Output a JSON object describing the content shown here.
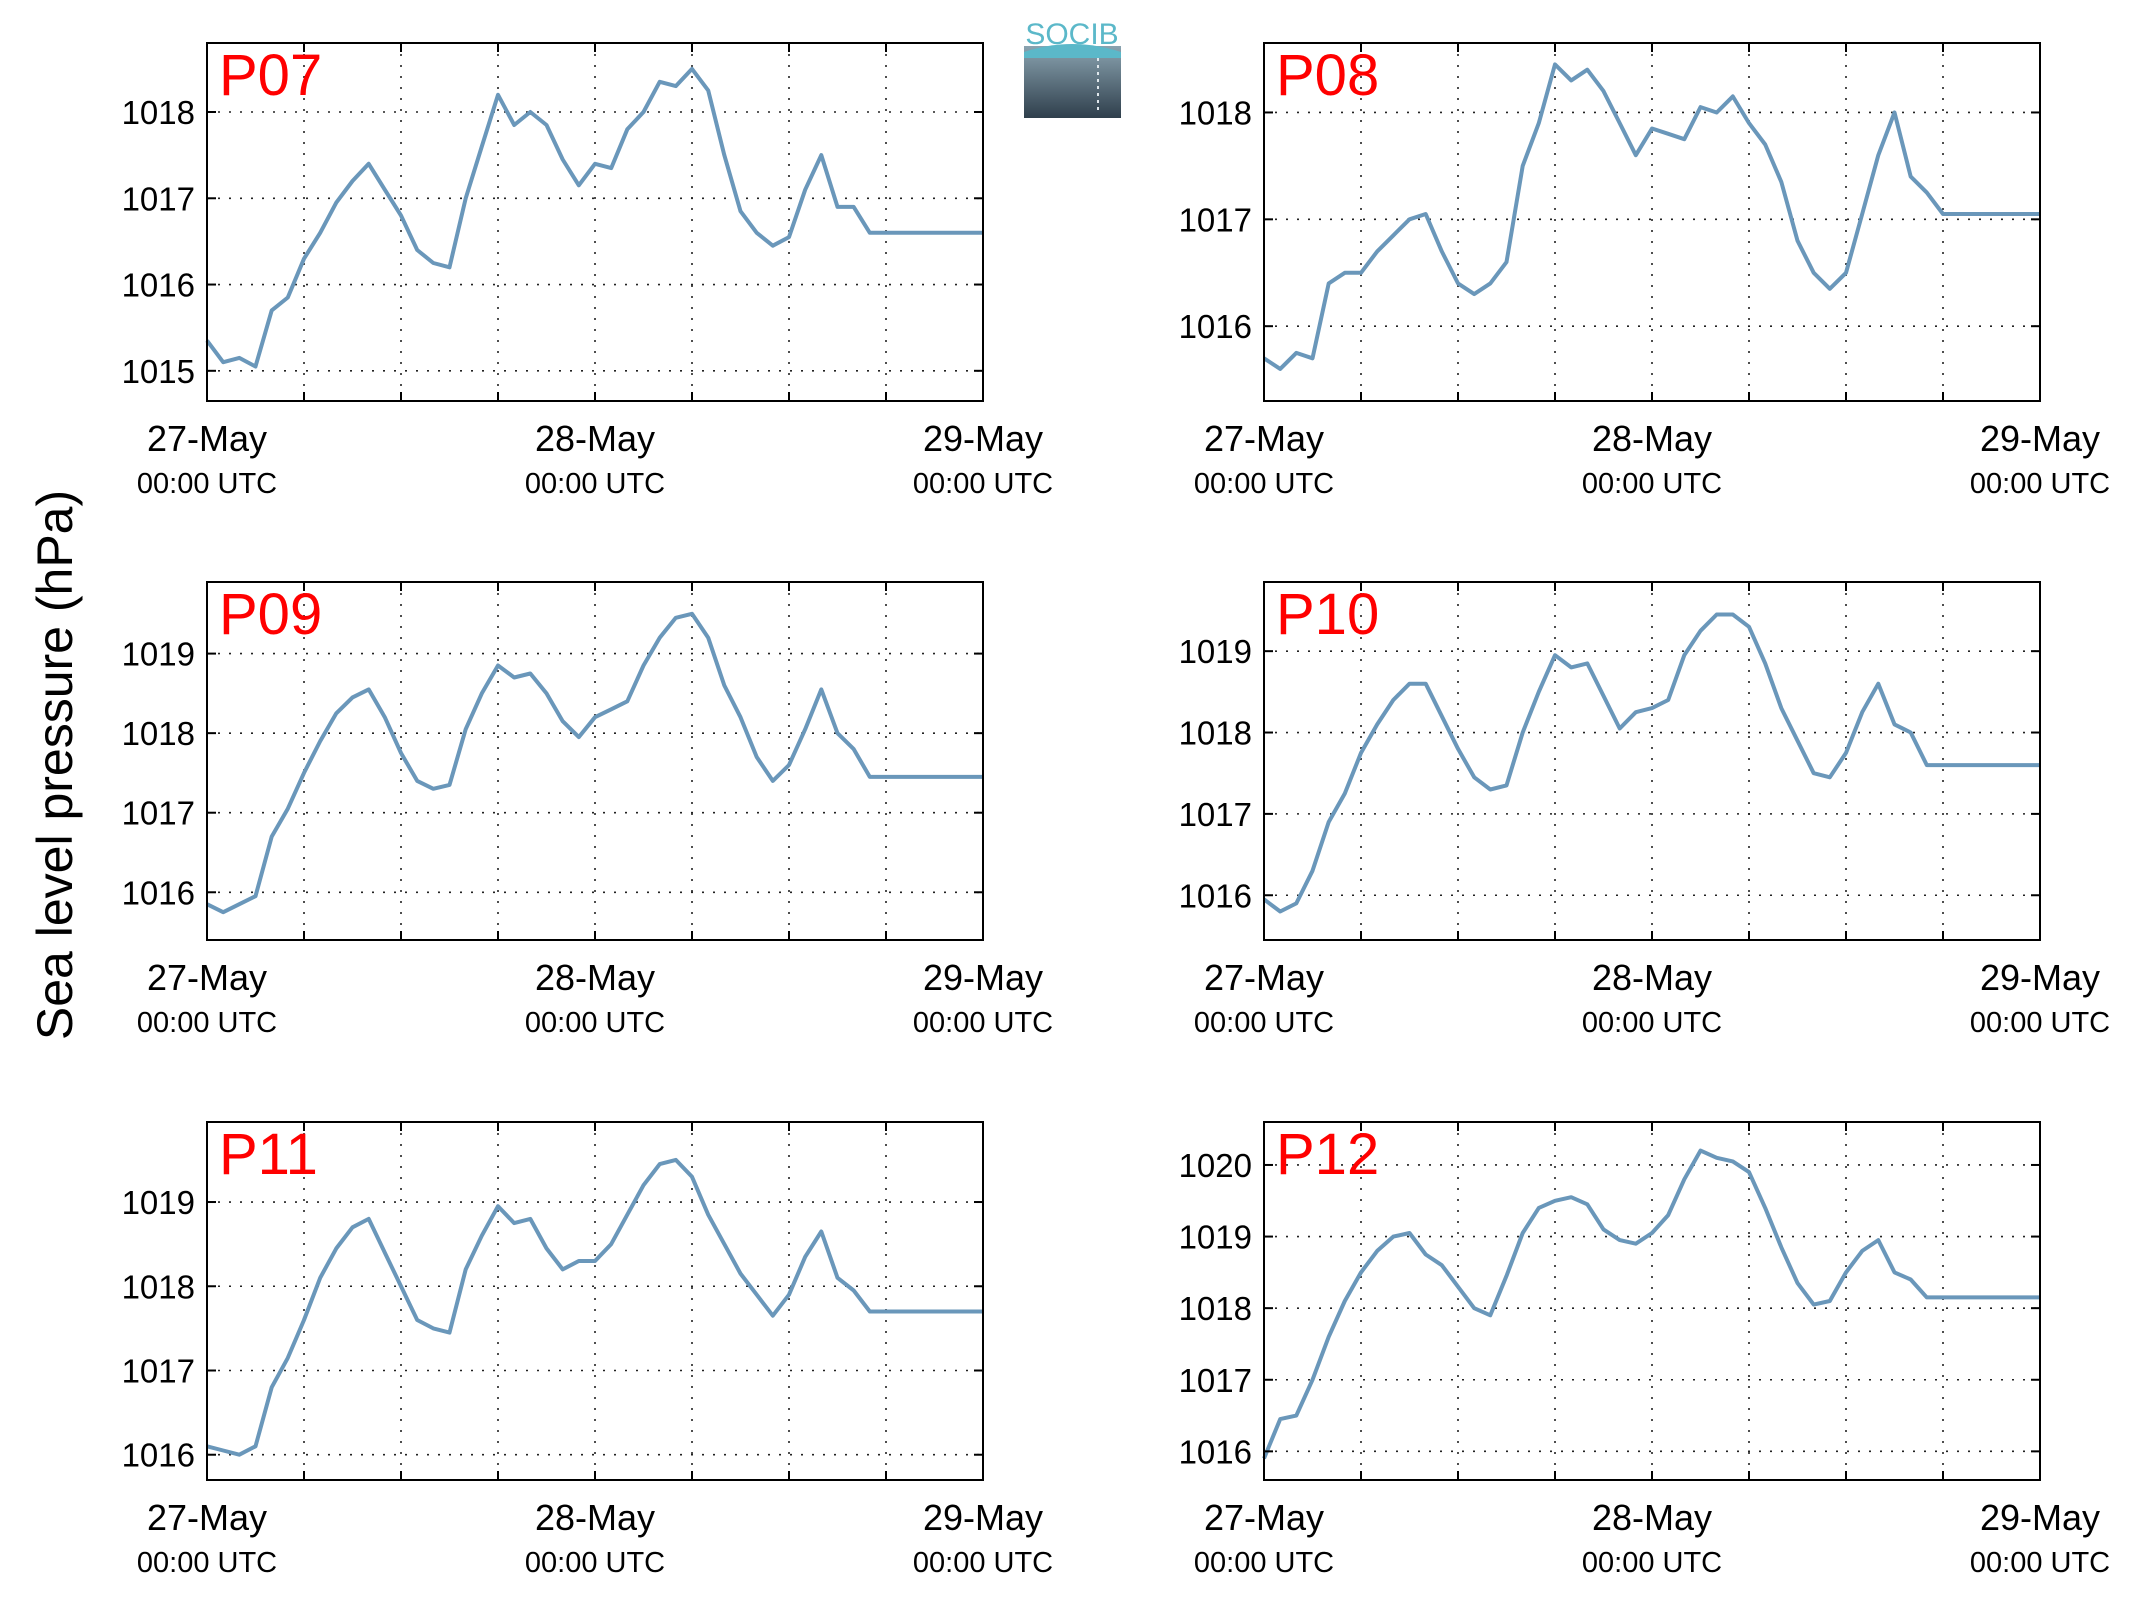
{
  "ylabel": "Sea level pressure (hPa)",
  "logo": {
    "text": "SOCIB",
    "colors": [
      "#5bb8c9",
      "#8aa3b0",
      "#2f3f4c"
    ]
  },
  "colors": {
    "line": "#6a97ba",
    "panel_label": "#ff0000",
    "axis": "#000000",
    "grid": "#222222"
  },
  "x_axis": {
    "ticks": [
      "27-May",
      "28-May",
      "29-May"
    ],
    "tick_sublabels": [
      "00:00 UTC",
      "00:00 UTC",
      "00:00 UTC"
    ],
    "tick_values_hours": [
      0,
      24,
      48
    ],
    "grid_hours": [
      6,
      12,
      18,
      24,
      30,
      36,
      42
    ],
    "range_hours": [
      0,
      48
    ]
  },
  "chart_data": [
    {
      "type": "line",
      "label": "P07",
      "ylim": [
        1014.65,
        1018.8
      ],
      "yticks": [
        1015,
        1016,
        1017,
        1018
      ],
      "x_hours": [
        0,
        1,
        2,
        3,
        4,
        5,
        6,
        7,
        8,
        9,
        10,
        11,
        12,
        13,
        14,
        15,
        16,
        17,
        18,
        19,
        20,
        21,
        22,
        23,
        24,
        25,
        26,
        27,
        28,
        29,
        30,
        31,
        32,
        33,
        34,
        35,
        36,
        37,
        38,
        39,
        40,
        41,
        42,
        43,
        44,
        45,
        46,
        47,
        48
      ],
      "values": [
        1015.35,
        1015.1,
        1015.15,
        1015.05,
        1015.7,
        1015.85,
        1016.3,
        1016.6,
        1016.95,
        1017.2,
        1017.4,
        1017.1,
        1016.8,
        1016.4,
        1016.25,
        1016.2,
        1017.0,
        1017.6,
        1018.2,
        1017.85,
        1018.0,
        1017.85,
        1017.45,
        1017.15,
        1017.4,
        1017.35,
        1017.8,
        1018.0,
        1018.35,
        1018.3,
        1018.5,
        1018.25,
        1017.5,
        1016.85,
        1016.6,
        1016.45,
        1016.55,
        1017.1,
        1017.5,
        1016.9,
        1016.9,
        1016.6,
        1016.6,
        1016.6,
        1016.6,
        1016.6,
        1016.6,
        1016.6,
        1016.6
      ]
    },
    {
      "type": "line",
      "label": "P08",
      "ylim": [
        1015.3,
        1018.65
      ],
      "yticks": [
        1016,
        1017,
        1018
      ],
      "x_hours": [
        0,
        1,
        2,
        3,
        4,
        5,
        6,
        7,
        8,
        9,
        10,
        11,
        12,
        13,
        14,
        15,
        16,
        17,
        18,
        19,
        20,
        21,
        22,
        23,
        24,
        25,
        26,
        27,
        28,
        29,
        30,
        31,
        32,
        33,
        34,
        35,
        36,
        37,
        38,
        39,
        40,
        41,
        42,
        43,
        44,
        45,
        46,
        47,
        48
      ],
      "values": [
        1015.7,
        1015.6,
        1015.75,
        1015.7,
        1016.4,
        1016.5,
        1016.5,
        1016.7,
        1016.85,
        1017.0,
        1017.05,
        1016.7,
        1016.4,
        1016.3,
        1016.4,
        1016.6,
        1017.5,
        1017.9,
        1018.45,
        1018.3,
        1018.4,
        1018.2,
        1017.9,
        1017.6,
        1017.85,
        1017.8,
        1017.75,
        1018.05,
        1018.0,
        1018.15,
        1017.9,
        1017.7,
        1017.35,
        1016.8,
        1016.5,
        1016.35,
        1016.5,
        1017.05,
        1017.6,
        1018.0,
        1017.4,
        1017.25,
        1017.05,
        1017.05,
        1017.05,
        1017.05,
        1017.05,
        1017.05,
        1017.05
      ]
    },
    {
      "type": "line",
      "label": "P09",
      "ylim": [
        1015.4,
        1019.9
      ],
      "yticks": [
        1016,
        1017,
        1018,
        1019
      ],
      "x_hours": [
        0,
        1,
        2,
        3,
        4,
        5,
        6,
        7,
        8,
        9,
        10,
        11,
        12,
        13,
        14,
        15,
        16,
        17,
        18,
        19,
        20,
        21,
        22,
        23,
        24,
        25,
        26,
        27,
        28,
        29,
        30,
        31,
        32,
        33,
        34,
        35,
        36,
        37,
        38,
        39,
        40,
        41,
        42,
        43,
        44,
        45,
        46,
        47,
        48
      ],
      "values": [
        1015.85,
        1015.75,
        1015.85,
        1015.95,
        1016.7,
        1017.05,
        1017.5,
        1017.9,
        1018.25,
        1018.45,
        1018.55,
        1018.2,
        1017.75,
        1017.4,
        1017.3,
        1017.35,
        1018.05,
        1018.5,
        1018.85,
        1018.7,
        1018.75,
        1018.5,
        1018.15,
        1017.95,
        1018.2,
        1018.3,
        1018.4,
        1018.85,
        1019.2,
        1019.45,
        1019.5,
        1019.2,
        1018.6,
        1018.2,
        1017.7,
        1017.4,
        1017.6,
        1018.05,
        1018.55,
        1018.0,
        1017.8,
        1017.45,
        1017.45,
        1017.45,
        1017.45,
        1017.45,
        1017.45,
        1017.45,
        1017.45
      ]
    },
    {
      "type": "line",
      "label": "P10",
      "ylim": [
        1015.45,
        1019.85
      ],
      "yticks": [
        1016,
        1017,
        1018,
        1019
      ],
      "x_hours": [
        0,
        1,
        2,
        3,
        4,
        5,
        6,
        7,
        8,
        9,
        10,
        11,
        12,
        13,
        14,
        15,
        16,
        17,
        18,
        19,
        20,
        21,
        22,
        23,
        24,
        25,
        26,
        27,
        28,
        29,
        30,
        31,
        32,
        33,
        34,
        35,
        36,
        37,
        38,
        39,
        40,
        41,
        42,
        43,
        44,
        45,
        46,
        47,
        48
      ],
      "values": [
        1015.95,
        1015.8,
        1015.9,
        1016.3,
        1016.9,
        1017.25,
        1017.75,
        1018.1,
        1018.4,
        1018.6,
        1018.6,
        1018.2,
        1017.8,
        1017.45,
        1017.3,
        1017.35,
        1018.0,
        1018.5,
        1018.95,
        1018.8,
        1018.85,
        1018.45,
        1018.05,
        1018.25,
        1018.3,
        1018.4,
        1018.95,
        1019.25,
        1019.45,
        1019.45,
        1019.3,
        1018.85,
        1018.3,
        1017.9,
        1017.5,
        1017.45,
        1017.75,
        1018.25,
        1018.6,
        1018.1,
        1018.0,
        1017.6,
        1017.6,
        1017.6,
        1017.6,
        1017.6,
        1017.6,
        1017.6,
        1017.6
      ]
    },
    {
      "type": "line",
      "label": "P11",
      "ylim": [
        1015.7,
        1019.95
      ],
      "yticks": [
        1016,
        1017,
        1018,
        1019
      ],
      "x_hours": [
        0,
        1,
        2,
        3,
        4,
        5,
        6,
        7,
        8,
        9,
        10,
        11,
        12,
        13,
        14,
        15,
        16,
        17,
        18,
        19,
        20,
        21,
        22,
        23,
        24,
        25,
        26,
        27,
        28,
        29,
        30,
        31,
        32,
        33,
        34,
        35,
        36,
        37,
        38,
        39,
        40,
        41,
        42,
        43,
        44,
        45,
        46,
        47,
        48
      ],
      "values": [
        1016.1,
        1016.05,
        1016.0,
        1016.1,
        1016.8,
        1017.15,
        1017.6,
        1018.1,
        1018.45,
        1018.7,
        1018.8,
        1018.4,
        1018.0,
        1017.6,
        1017.5,
        1017.45,
        1018.2,
        1018.6,
        1018.95,
        1018.75,
        1018.8,
        1018.45,
        1018.2,
        1018.3,
        1018.3,
        1018.5,
        1018.85,
        1019.2,
        1019.45,
        1019.5,
        1019.3,
        1018.85,
        1018.5,
        1018.15,
        1017.9,
        1017.65,
        1017.9,
        1018.35,
        1018.65,
        1018.1,
        1017.95,
        1017.7,
        1017.7,
        1017.7,
        1017.7,
        1017.7,
        1017.7,
        1017.7,
        1017.7
      ]
    },
    {
      "type": "line",
      "label": "P12",
      "ylim": [
        1015.6,
        1020.6
      ],
      "yticks": [
        1016,
        1017,
        1018,
        1019,
        1020
      ],
      "x_hours": [
        0,
        1,
        2,
        3,
        4,
        5,
        6,
        7,
        8,
        9,
        10,
        11,
        12,
        13,
        14,
        15,
        16,
        17,
        18,
        19,
        20,
        21,
        22,
        23,
        24,
        25,
        26,
        27,
        28,
        29,
        30,
        31,
        32,
        33,
        34,
        35,
        36,
        37,
        38,
        39,
        40,
        41,
        42,
        43,
        44,
        45,
        46,
        47,
        48
      ],
      "values": [
        1015.9,
        1016.45,
        1016.5,
        1017.0,
        1017.6,
        1018.1,
        1018.5,
        1018.8,
        1019.0,
        1019.05,
        1018.75,
        1018.6,
        1018.3,
        1018.0,
        1017.9,
        1018.45,
        1019.05,
        1019.4,
        1019.5,
        1019.55,
        1019.45,
        1019.1,
        1018.95,
        1018.9,
        1019.05,
        1019.3,
        1019.8,
        1020.2,
        1020.1,
        1020.05,
        1019.9,
        1019.4,
        1018.85,
        1018.35,
        1018.05,
        1018.1,
        1018.5,
        1018.8,
        1018.95,
        1018.5,
        1018.4,
        1018.15,
        1018.15,
        1018.15,
        1018.15,
        1018.15,
        1018.15,
        1018.15,
        1018.15
      ]
    }
  ]
}
